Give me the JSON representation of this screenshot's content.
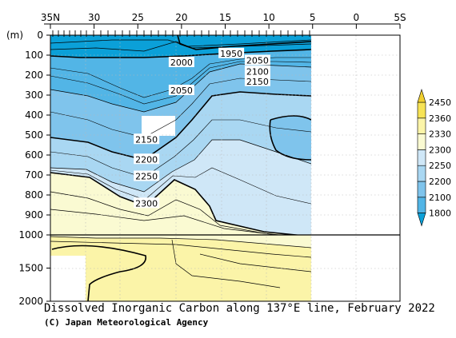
{
  "chart_data": {
    "type": "heatmap",
    "title": "Dissolved Inorganic Carbon along 137°E line, February 2022",
    "credit": "(C) Japan Meteorological Agency",
    "ylabel": "(m)",
    "x_axis": {
      "ticks": [
        {
          "value": 35,
          "label": "35N"
        },
        {
          "value": 30,
          "label": "30"
        },
        {
          "value": 25,
          "label": "25"
        },
        {
          "value": 20,
          "label": "20"
        },
        {
          "value": 15,
          "label": "15"
        },
        {
          "value": 10,
          "label": "10"
        },
        {
          "value": 5,
          "label": "5"
        },
        {
          "value": 0,
          "label": "0"
        },
        {
          "value": -5,
          "label": "5S"
        }
      ],
      "range": [
        35,
        -5
      ]
    },
    "y_axis": {
      "upper_range": [
        0,
        1000
      ],
      "lower_range": [
        1000,
        2000
      ],
      "upper_ticks": [
        0,
        100,
        200,
        300,
        400,
        500,
        600,
        700,
        800,
        900,
        1000
      ],
      "lower_ticks": [
        1500,
        2000
      ]
    },
    "colorbar": {
      "levels": [
        1800,
        2100,
        2200,
        2250,
        2300,
        2330,
        2360,
        2450
      ],
      "colors": [
        "#0ba0d8",
        "#52b5e6",
        "#7fc4ec",
        "#a9d7f2",
        "#cfe7f7",
        "#fafad2",
        "#fbf4a8",
        "#f7e356",
        "#f0cf2f"
      ]
    },
    "contour_labels": [
      {
        "text": "1950",
        "lat": 14.3,
        "depth": 95
      },
      {
        "text": "2000",
        "lat": 20.0,
        "depth": 140
      },
      {
        "text": "2050",
        "lat": 11.3,
        "depth": 130
      },
      {
        "text": "2100",
        "lat": 11.3,
        "depth": 185
      },
      {
        "text": "2150",
        "lat": 11.3,
        "depth": 235
      },
      {
        "text": "2050",
        "lat": 20.0,
        "depth": 280
      },
      {
        "text": "2150",
        "lat": 24.0,
        "depth": 525
      },
      {
        "text": "2200",
        "lat": 24.0,
        "depth": 625
      },
      {
        "text": "2250",
        "lat": 24.0,
        "depth": 710
      },
      {
        "text": "2300",
        "lat": 24.0,
        "depth": 845
      }
    ],
    "grid": true
  }
}
